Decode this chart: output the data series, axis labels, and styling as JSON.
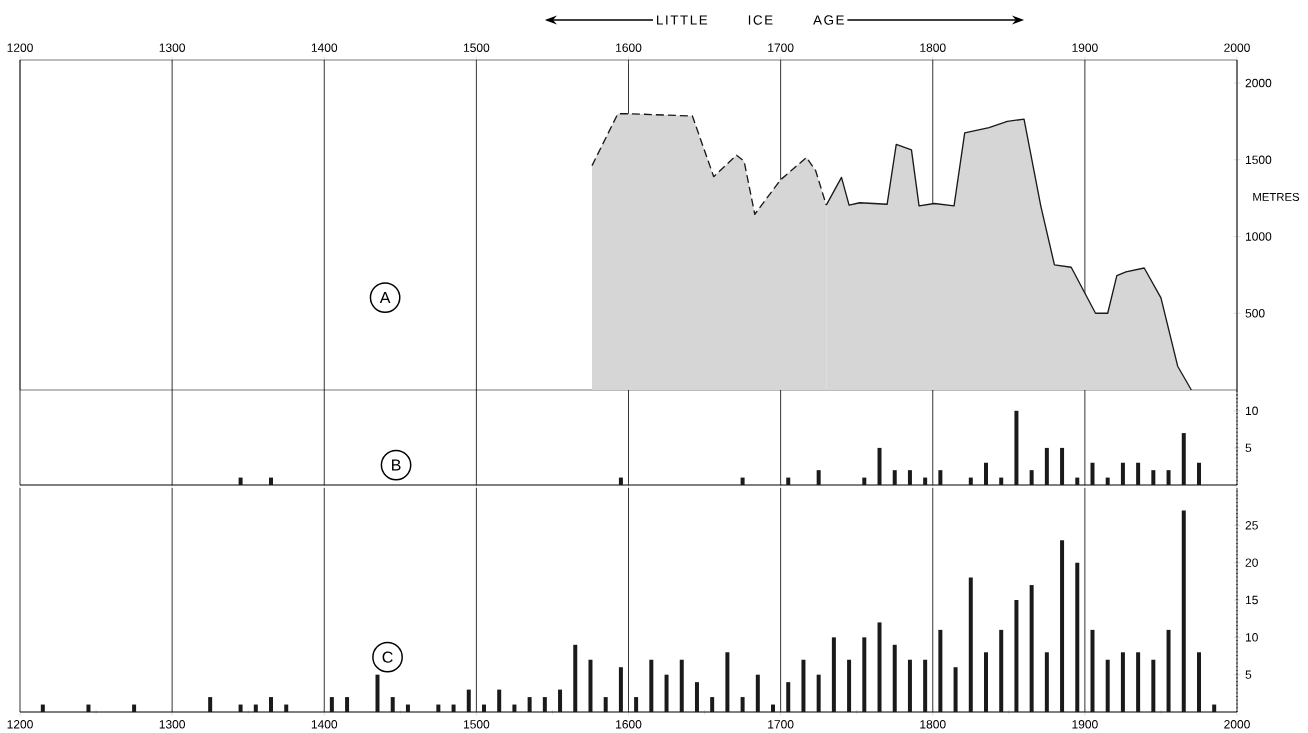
{
  "chart_data": [
    {
      "type": "area",
      "title": "LITTLE ICE AGE",
      "ylabel": "METRES",
      "annotations": [
        "A"
      ],
      "xlim": [
        1200,
        2000
      ],
      "xticks": [
        1200,
        1300,
        1400,
        1500,
        1600,
        1700,
        1800,
        1900,
        2000
      ],
      "ylim": [
        0,
        2150
      ],
      "yticks": [
        500,
        1000,
        1500,
        2000
      ],
      "grid": "x",
      "series": [
        {
          "type": "area",
          "line_style": "dashed",
          "color": "#d6d6d6",
          "x": [
            1576,
            1593,
            1600,
            1642,
            1656,
            1671,
            1676,
            1683,
            1700,
            1717,
            1723,
            1730
          ],
          "values": [
            1462,
            1800,
            1800,
            1785,
            1390,
            1530,
            1490,
            1145,
            1370,
            1515,
            1430,
            1205
          ]
        },
        {
          "type": "area",
          "line_style": "solid",
          "color": "#d6d6d6",
          "x": [
            1730,
            1740,
            1745,
            1752,
            1761,
            1770,
            1776,
            1786,
            1791,
            1801,
            1814,
            1821,
            1837,
            1849,
            1860,
            1871,
            1880,
            1891,
            1907,
            1915,
            1921,
            1927,
            1939,
            1950,
            1961,
            1970
          ],
          "values": [
            1205,
            1385,
            1205,
            1220,
            1215,
            1210,
            1600,
            1565,
            1200,
            1215,
            1200,
            1675,
            1710,
            1750,
            1765,
            1200,
            815,
            800,
            500,
            500,
            745,
            770,
            795,
            600,
            155,
            0
          ]
        }
      ]
    },
    {
      "type": "bar",
      "annotations": [
        "B"
      ],
      "color": "#1a1a1a",
      "xlim": [
        1200,
        2000
      ],
      "xticks": [
        1200,
        1300,
        1400,
        1500,
        1600,
        1700,
        1800,
        1900,
        2000
      ],
      "ylim": [
        0,
        12.8
      ],
      "yticks": [
        5,
        10
      ],
      "grid": "x",
      "tick_labels": "y",
      "x": [
        1345,
        1365,
        1595,
        1675,
        1705,
        1725,
        1755,
        1765,
        1775,
        1785,
        1795,
        1805,
        1825,
        1835,
        1845,
        1855,
        1865,
        1875,
        1885,
        1895,
        1905,
        1915,
        1925,
        1935,
        1945,
        1955,
        1965,
        1975
      ],
      "values": [
        1,
        1,
        1,
        1,
        1,
        2,
        1,
        5,
        2,
        2,
        1,
        2,
        1,
        3,
        1,
        10,
        2,
        5,
        5,
        1,
        3,
        1,
        3,
        3,
        2,
        2,
        7,
        3
      ]
    },
    {
      "type": "bar",
      "annotations": [
        "C"
      ],
      "color": "#1a1a1a",
      "xlim": [
        1200,
        2000
      ],
      "xticks": [
        1200,
        {
          "value": 1250,
          "label": null
        },
        1300,
        {
          "value": 1350,
          "label": null
        },
        1400,
        {
          "value": 1450,
          "label": null
        },
        1500,
        {
          "value": 1550,
          "label": null
        },
        1600,
        {
          "value": 1650,
          "label": null
        },
        1700,
        {
          "value": 1750,
          "label": null
        },
        1800,
        {
          "value": 1850,
          "label": null
        },
        1900,
        {
          "value": 1950,
          "label": null
        },
        2000
      ],
      "ylim": [
        0,
        30
      ],
      "yticks": [
        5,
        10,
        15,
        20,
        25
      ],
      "grid": "x",
      "x": [
        1215,
        1245,
        1275,
        1325,
        1345,
        1355,
        1365,
        1375,
        1405,
        1415,
        1435,
        1445,
        1455,
        1475,
        1485,
        1495,
        1505,
        1515,
        1525,
        1535,
        1545,
        1555,
        1565,
        1575,
        1585,
        1595,
        1605,
        1615,
        1625,
        1635,
        1645,
        1655,
        1665,
        1675,
        1685,
        1695,
        1705,
        1715,
        1725,
        1735,
        1745,
        1755,
        1765,
        1775,
        1785,
        1795,
        1805,
        1815,
        1825,
        1835,
        1845,
        1855,
        1865,
        1875,
        1885,
        1895,
        1905,
        1915,
        1925,
        1935,
        1945,
        1955,
        1965,
        1975,
        1985
      ],
      "values": [
        1,
        1,
        1,
        2,
        1,
        1,
        2,
        1,
        2,
        2,
        5,
        2,
        1,
        1,
        1,
        3,
        1,
        3,
        1,
        2,
        2,
        3,
        9,
        7,
        2,
        6,
        2,
        7,
        5,
        7,
        4,
        2,
        8,
        2,
        5,
        1,
        4,
        7,
        5,
        10,
        7,
        10,
        12,
        9,
        7,
        7,
        11,
        6,
        18,
        8,
        11,
        15,
        17,
        8,
        23,
        20,
        11,
        7,
        8,
        8,
        7,
        11,
        27,
        8,
        1
      ]
    }
  ]
}
